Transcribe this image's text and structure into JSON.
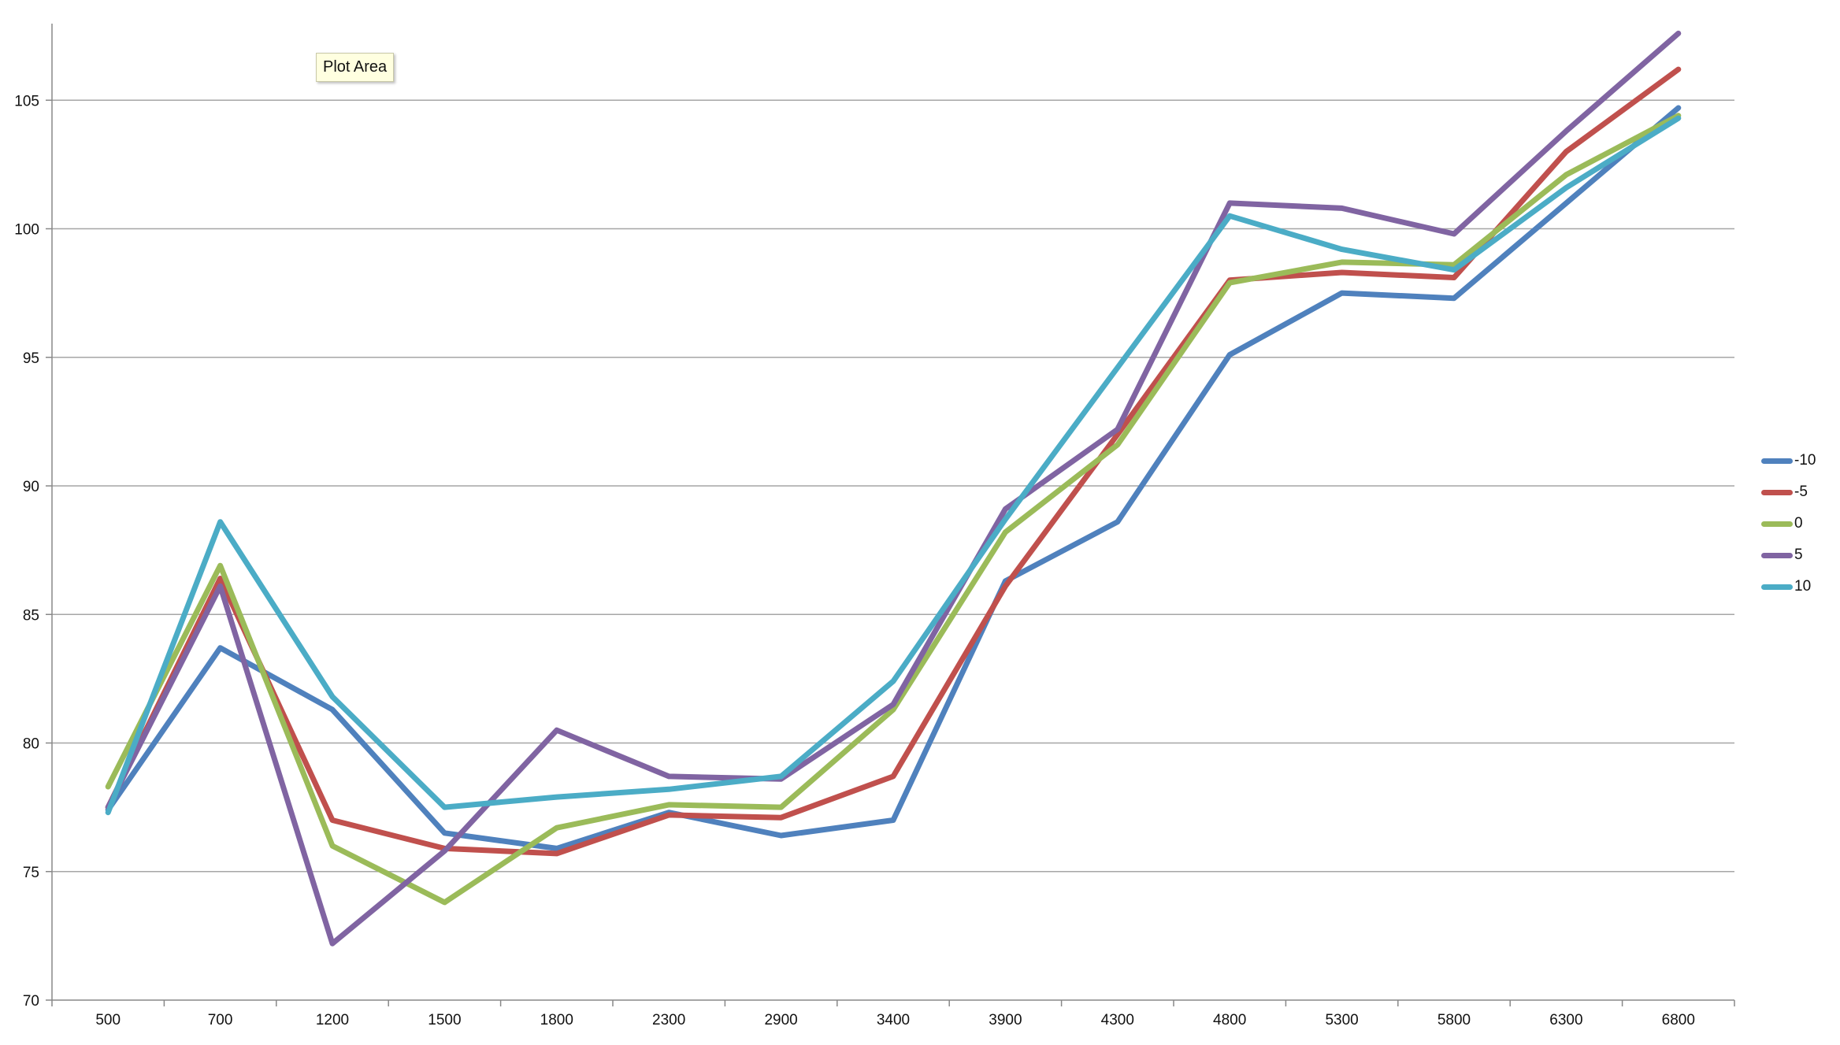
{
  "tooltip": {
    "text": "Plot Area"
  },
  "chart_data": {
    "type": "line",
    "title": "",
    "xlabel": "",
    "ylabel": "",
    "categories": [
      "500",
      "700",
      "1200",
      "1500",
      "1800",
      "2300",
      "2900",
      "3400",
      "3900",
      "4300",
      "4800",
      "5300",
      "5800",
      "6300",
      "6800"
    ],
    "ylim": [
      70,
      108
    ],
    "yticks": [
      70,
      75,
      80,
      85,
      90,
      95,
      100,
      105
    ],
    "grid": true,
    "legend_position": "right",
    "series": [
      {
        "name": "-10",
        "color": "#4f81bd",
        "values": [
          77.4,
          83.7,
          81.3,
          76.5,
          75.9,
          77.3,
          76.4,
          77.0,
          86.3,
          88.6,
          95.1,
          97.5,
          97.3,
          101.0,
          104.7
        ]
      },
      {
        "name": "-5",
        "color": "#c0504d",
        "values": [
          77.5,
          86.4,
          77.0,
          75.9,
          75.7,
          77.2,
          77.1,
          78.7,
          86.1,
          92.0,
          98.0,
          98.3,
          98.1,
          103.0,
          106.2
        ]
      },
      {
        "name": "0",
        "color": "#9bbb59",
        "values": [
          78.3,
          86.9,
          76.0,
          73.8,
          76.7,
          77.6,
          77.5,
          81.3,
          88.2,
          91.6,
          97.9,
          98.7,
          98.6,
          102.1,
          104.4
        ]
      },
      {
        "name": "5",
        "color": "#8064a2",
        "values": [
          77.5,
          86.1,
          72.2,
          75.8,
          80.5,
          78.7,
          78.6,
          81.5,
          89.1,
          92.2,
          101.0,
          100.8,
          99.8,
          103.8,
          107.6
        ]
      },
      {
        "name": "10",
        "color": "#4bacc6",
        "values": [
          77.3,
          88.6,
          81.8,
          77.5,
          77.9,
          78.2,
          78.7,
          82.4,
          88.7,
          94.6,
          100.5,
          99.2,
          98.4,
          101.6,
          104.3
        ]
      }
    ]
  }
}
